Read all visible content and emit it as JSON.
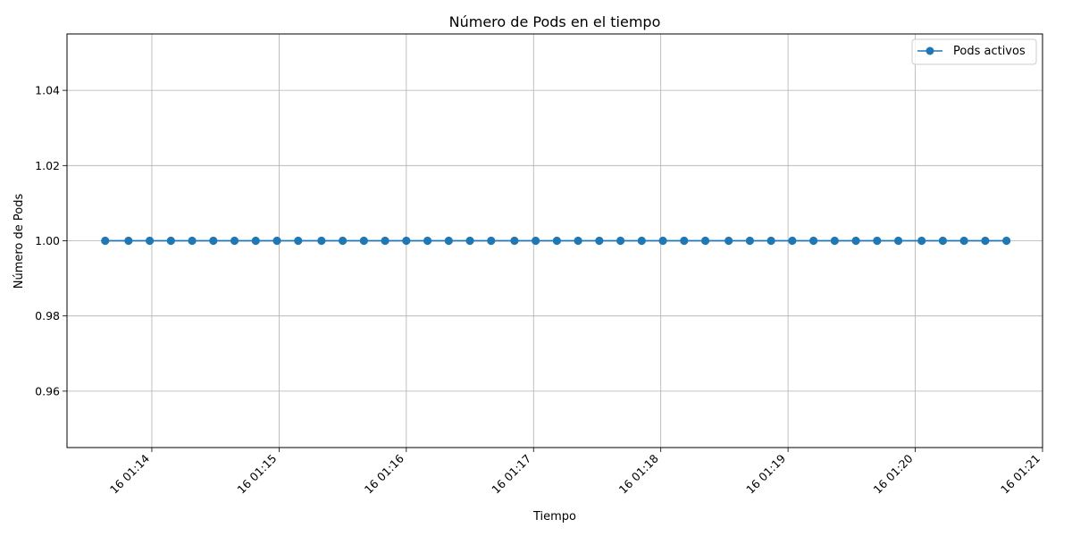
{
  "chart_data": {
    "type": "line",
    "title": "Número de Pods en el tiempo",
    "xlabel": "Tiempo",
    "ylabel": "Número de Pods",
    "x_ticks": [
      "16 01:14",
      "16 01:15",
      "16 01:16",
      "16 01:17",
      "16 01:18",
      "16 01:19",
      "16 01:20",
      "16 01:21"
    ],
    "y_ticks": [
      "0.96",
      "0.98",
      "1.00",
      "1.02",
      "1.04"
    ],
    "xlim": [
      "01:13:20",
      "01:21:00"
    ],
    "ylim": [
      0.945,
      1.055
    ],
    "grid": true,
    "legend_position": "top-right",
    "line_color": "#1f77b4",
    "series": [
      {
        "name": "Pods activos",
        "x": [
          "01:13:38",
          "01:13:49",
          "01:13:59",
          "01:14:09",
          "01:14:19",
          "01:14:29",
          "01:14:39",
          "01:14:49",
          "01:14:59",
          "01:15:09",
          "01:15:20",
          "01:15:30",
          "01:15:40",
          "01:15:50",
          "01:16:00",
          "01:16:10",
          "01:16:20",
          "01:16:30",
          "01:16:40",
          "01:16:51",
          "01:17:01",
          "01:17:11",
          "01:17:21",
          "01:17:31",
          "01:17:41",
          "01:17:51",
          "01:18:01",
          "01:18:11",
          "01:18:21",
          "01:18:32",
          "01:18:42",
          "01:18:52",
          "01:19:02",
          "01:19:12",
          "01:19:22",
          "01:19:32",
          "01:19:42",
          "01:19:52",
          "01:20:03",
          "01:20:13",
          "01:20:23",
          "01:20:33",
          "01:20:43"
        ],
        "values": [
          1,
          1,
          1,
          1,
          1,
          1,
          1,
          1,
          1,
          1,
          1,
          1,
          1,
          1,
          1,
          1,
          1,
          1,
          1,
          1,
          1,
          1,
          1,
          1,
          1,
          1,
          1,
          1,
          1,
          1,
          1,
          1,
          1,
          1,
          1,
          1,
          1,
          1,
          1,
          1,
          1,
          1,
          1
        ]
      }
    ]
  }
}
